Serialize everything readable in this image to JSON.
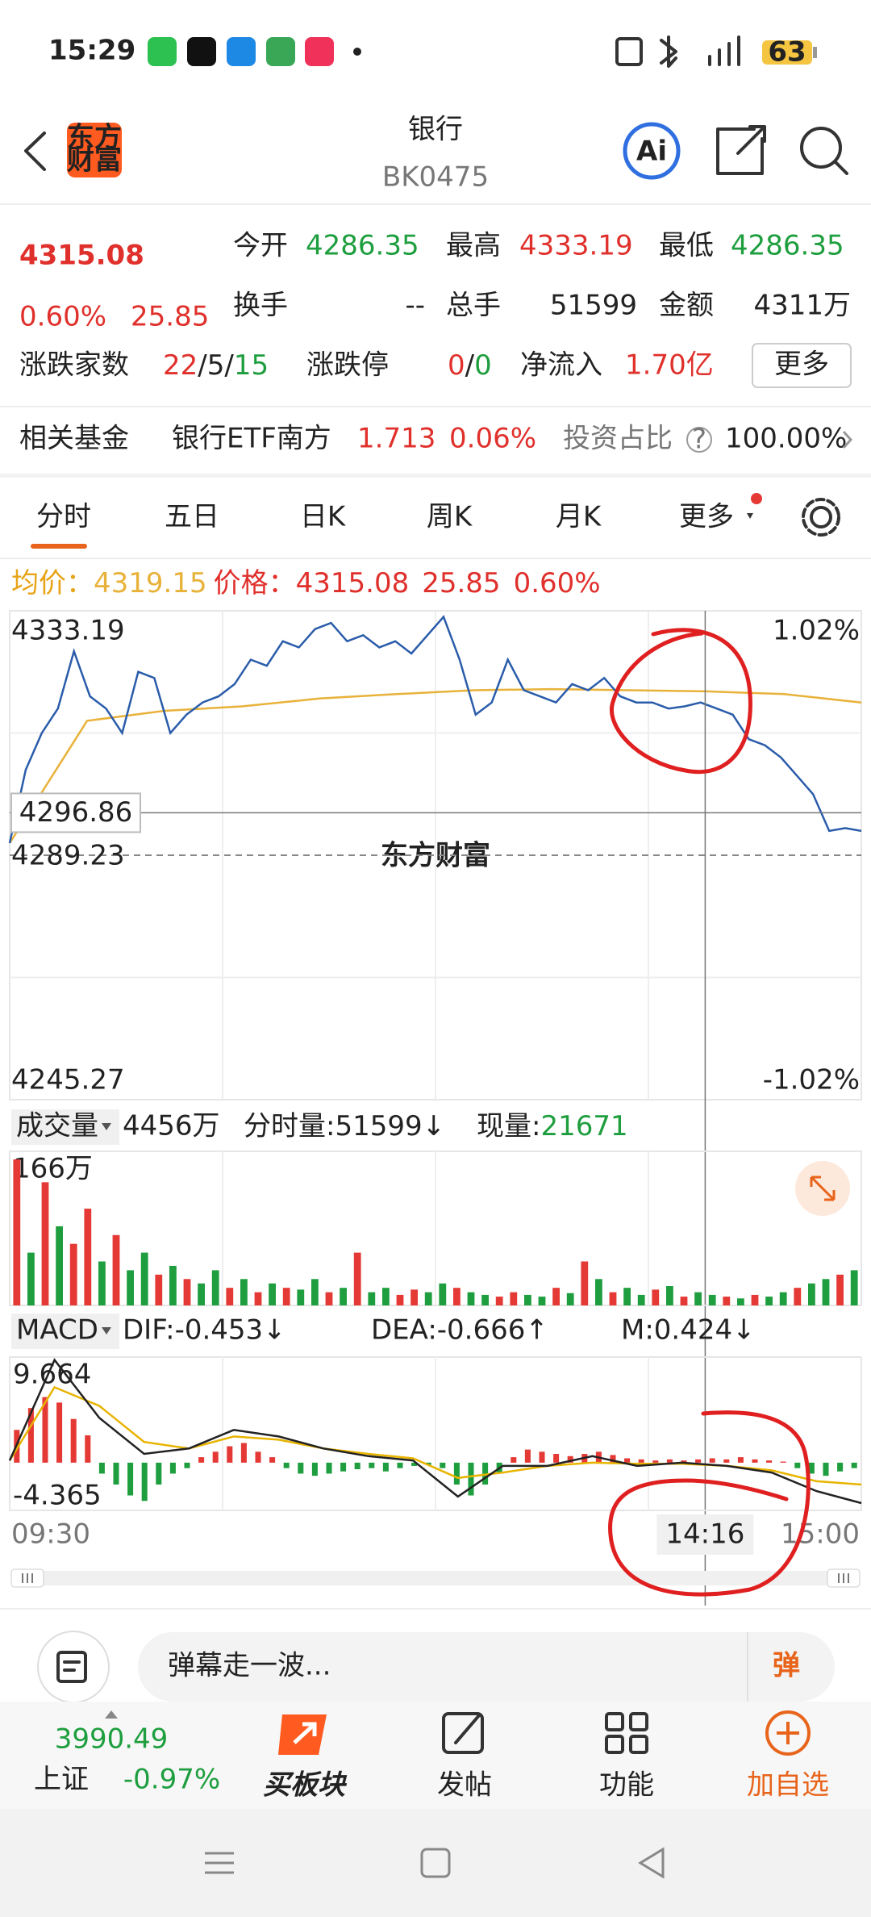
{
  "status_bar": {
    "time": "15:29",
    "battery": "63"
  },
  "header": {
    "logo": [
      "东方",
      "财富"
    ],
    "title": "银行",
    "code": "BK0475",
    "ai": "Ai"
  },
  "quote": {
    "price": "4315.08",
    "change_pct": "0.60%",
    "change": "25.85",
    "open": {
      "label": "今开",
      "value": "4286.35"
    },
    "high": {
      "label": "最高",
      "value": "4333.19"
    },
    "low": {
      "label": "最低",
      "value": "4286.35"
    },
    "turnover": {
      "label": "换手",
      "value": "--"
    },
    "volume": {
      "label": "总手",
      "value": "51599"
    },
    "amount": {
      "label": "金额",
      "value": "4311万"
    },
    "breadth": {
      "label": "涨跌家数",
      "up": "22",
      "flat": "5",
      "down": "15",
      "separator": "/"
    },
    "limit": {
      "label": "涨跌停",
      "up": "0",
      "down": "0",
      "separator": "/"
    },
    "net_inflow": {
      "label": "净流入",
      "value": "1.70亿"
    },
    "more": "更多"
  },
  "fund": {
    "label": "相关基金",
    "name": "银行ETF南方",
    "price": "1.713",
    "change_pct": "0.06%",
    "ratio_label": "投资占比",
    "help": "?",
    "ratio": "100.00%"
  },
  "tabs": [
    "分时",
    "五日",
    "日K",
    "周K",
    "月K",
    "更多"
  ],
  "chart": {
    "colors": {
      "up": "#e53935",
      "down": "#1e9e3e",
      "price": "#2a5caa",
      "avg": "#e8b23a",
      "dif": "#222222",
      "dea": "#e8b400"
    },
    "info": {
      "avg_label": "均价：",
      "avg": "4319.15",
      "price_label": "价格：",
      "price": "4315.08",
      "change": "25.85",
      "change_pct": "0.60%"
    },
    "intraday": {
      "ylim": [
        4245.27,
        4333.19
      ],
      "base": 4289.23,
      "pct_top": "1.02%",
      "pct_bottom": "-1.02%",
      "watermark": "东方财富",
      "crosshair": {
        "value": 4296.86,
        "time": "14:16"
      },
      "price": [
        4291.4,
        4304.6,
        4311.2,
        4315.6,
        4325.9,
        4317.8,
        4315.6,
        4311.2,
        4322.2,
        4321.1,
        4311.2,
        4314.5,
        4316.7,
        4317.8,
        4320.0,
        4324.4,
        4323.3,
        4327.7,
        4326.6,
        4329.9,
        4331.0,
        4327.7,
        4328.8,
        4326.6,
        4327.7,
        4325.5,
        4328.8,
        4332.1,
        4324.4,
        4314.5,
        4316.7,
        4324.4,
        4318.9,
        4317.8,
        4316.7,
        4320.0,
        4318.9,
        4321.1,
        4317.8,
        4316.7,
        4316.7,
        4315.6,
        4316.0,
        4316.7,
        4315.6,
        4314.5,
        4310.1,
        4309.0,
        4306.8,
        4303.5,
        4300.2,
        4293.6,
        4294.1,
        4293.6
      ],
      "avg": [
        4291.4,
        4313.4,
        4315.2,
        4316.0,
        4317.4,
        4318.2,
        4318.9,
        4319.1,
        4318.9,
        4318.7,
        4318.2,
        4316.7
      ]
    },
    "volume": {
      "label": "成交量",
      "total": "4456万",
      "per_label": "分时量:",
      "per_value": "51599↓",
      "now_label": "现量:",
      "now_value": "21671",
      "max": {
        "value": 166,
        "label": "166万"
      },
      "values": [
        166,
        60,
        140,
        90,
        70,
        110,
        50,
        80,
        40,
        60,
        35,
        45,
        30,
        25,
        40,
        20,
        30,
        15,
        25,
        20,
        18,
        30,
        15,
        20,
        60,
        15,
        20,
        12,
        18,
        15,
        25,
        20,
        15,
        12,
        10,
        15,
        12,
        10,
        20,
        14,
        50,
        30,
        15,
        20,
        12,
        18,
        22,
        10,
        15,
        12,
        10,
        8,
        12,
        10,
        15,
        20,
        25,
        30,
        35,
        40
      ],
      "up": [
        1,
        0,
        1,
        0,
        1,
        1,
        0,
        1,
        0,
        0,
        1,
        0,
        1,
        0,
        0,
        1,
        0,
        1,
        0,
        1,
        0,
        0,
        1,
        0,
        1,
        0,
        0,
        1,
        1,
        0,
        0,
        1,
        0,
        0,
        1,
        1,
        0,
        0,
        1,
        0,
        1,
        0,
        1,
        0,
        0,
        1,
        0,
        1,
        0,
        0,
        1,
        0,
        1,
        0,
        0,
        1,
        0,
        0,
        1,
        0
      ]
    },
    "macd": {
      "label": "MACD",
      "dif": "DIF:-0.453↓",
      "dea": "DEA:-0.666↑",
      "m": "M:0.424↓",
      "ylim": [
        -4.365,
        9.664
      ],
      "bars": [
        3,
        5,
        6,
        5.5,
        4,
        2.5,
        -1,
        -2,
        -3,
        -3.5,
        -2,
        -1,
        -0.5,
        0.5,
        1,
        1.5,
        1.8,
        1,
        0.5,
        -0.5,
        -1,
        -1.2,
        -1,
        -0.8,
        -0.6,
        -0.5,
        -0.8,
        -0.5,
        -0.3,
        -0.2,
        -0.5,
        -2,
        -3,
        -2,
        -1,
        0.5,
        1.2,
        1,
        0.8,
        0.6,
        0.8,
        1,
        0.7,
        0.4,
        0.3,
        0.2,
        0.3,
        0.2,
        0.3,
        0.4,
        0.3,
        0.5,
        0.3,
        0.2,
        0.1,
        -0.5,
        -1,
        -1.2,
        -0.8,
        -0.5
      ],
      "dif_line": [
        0.2,
        9.4,
        4.1,
        0.8,
        1.3,
        3.0,
        2.4,
        1.3,
        0.6,
        0.2,
        -3.1,
        -0.3,
        -0.3,
        0.6,
        -0.3,
        0,
        -0.3,
        -0.9,
        -2.6,
        -3.7
      ],
      "dea_line": [
        0.2,
        6.9,
        5.2,
        1.9,
        1.3,
        2.4,
        2.1,
        1.3,
        0.8,
        0.4,
        -1.4,
        -0.9,
        -0.3,
        0,
        -0.1,
        -0.1,
        -0.3,
        -0.7,
        -1.7,
        -2.0
      ]
    },
    "time_axis": {
      "start": "09:30",
      "end": "15:00"
    }
  },
  "comment": {
    "placeholder": "弹幕走一波...",
    "button": "弹"
  },
  "bottom_nav": {
    "index": {
      "value": "3990.49",
      "name": "上证",
      "change_pct": "-0.97%"
    },
    "items": [
      "买板块",
      "发帖",
      "功能",
      "加自选"
    ]
  }
}
